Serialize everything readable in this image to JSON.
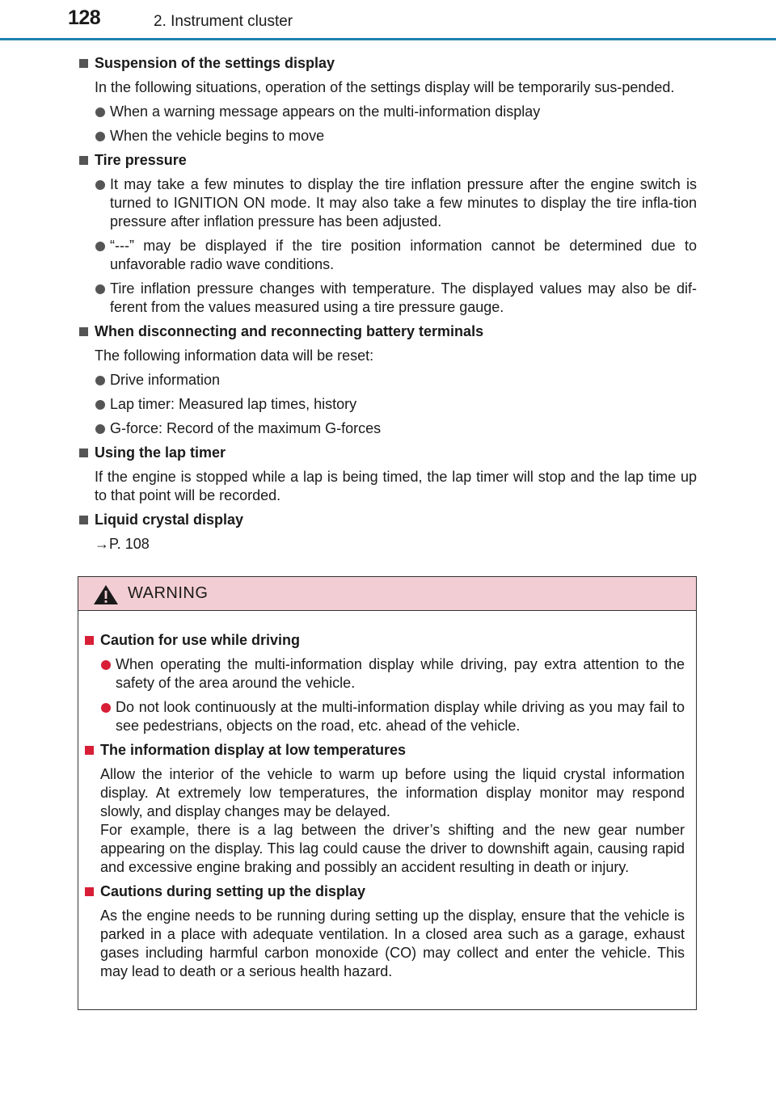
{
  "header": {
    "page_number": "128",
    "chapter": "2. Instrument cluster"
  },
  "sections": [
    {
      "heading": "Suspension of the settings display",
      "para": "In the following situations, operation of the settings display will be temporarily sus-pended.",
      "bullets": [
        "When a warning message appears on the multi-information display",
        "When the vehicle begins to move"
      ]
    },
    {
      "heading": "Tire pressure",
      "bullets": [
        "It may take a few minutes to display the tire inflation pressure after the engine switch is turned to IGNITION ON mode. It may also take a few minutes to display the tire infla-tion pressure after inflation pressure has been adjusted.",
        "“---” may be displayed if the tire position information cannot be determined due to unfavorable radio wave conditions.",
        "Tire inflation pressure changes with temperature. The displayed values may also be dif-ferent from the values measured using a tire pressure gauge."
      ]
    },
    {
      "heading": "When disconnecting and reconnecting battery terminals",
      "para": "The following information data will be reset:",
      "bullets": [
        "Drive information",
        "Lap timer: Measured lap times, history",
        "G-force: Record of the maximum G-forces"
      ]
    },
    {
      "heading": "Using the lap timer",
      "para": "If the engine is stopped while a lap is being timed, the lap timer will stop and the lap time up to that point will be recorded."
    },
    {
      "heading": "Liquid crystal display",
      "para": "→P. 108"
    }
  ],
  "warning": {
    "title": "WARNING",
    "sections": [
      {
        "heading": "Caution for use while driving",
        "bullets": [
          "When operating the multi-information display while driving, pay extra attention to the safety of the area around the vehicle.",
          "Do not look continuously at the multi-information display while driving as you may fail to see pedestrians, objects on the road, etc. ahead of the vehicle."
        ]
      },
      {
        "heading": "The information display at low temperatures",
        "para": "Allow the interior of the vehicle to warm up before using the liquid crystal information display. At extremely low temperatures, the information display monitor may respond slowly, and display changes may be delayed.",
        "para2": "For example, there is a lag between the driver’s shifting and the new gear number appearing on the display. This lag could cause the driver to downshift again, causing rapid and excessive engine braking and possibly an accident resulting in death or injury."
      },
      {
        "heading": "Cautions during setting up the display",
        "para": "As the engine needs to be running during setting up the display, ensure that the vehicle is parked in a place with adequate ventilation. In a closed area such as a garage, exhaust gases including harmful carbon monoxide (CO) may collect and enter the vehicle. This may lead to death or a serious health hazard."
      }
    ]
  },
  "icons": {
    "heading_marker": "square-bullet-icon",
    "list_marker": "round-bullet-icon",
    "warning_symbol": "warning-triangle-icon"
  },
  "colors": {
    "rule": "#1f82b0",
    "warning_fill": "#f2cdd3",
    "warning_marker": "#d81e36"
  }
}
